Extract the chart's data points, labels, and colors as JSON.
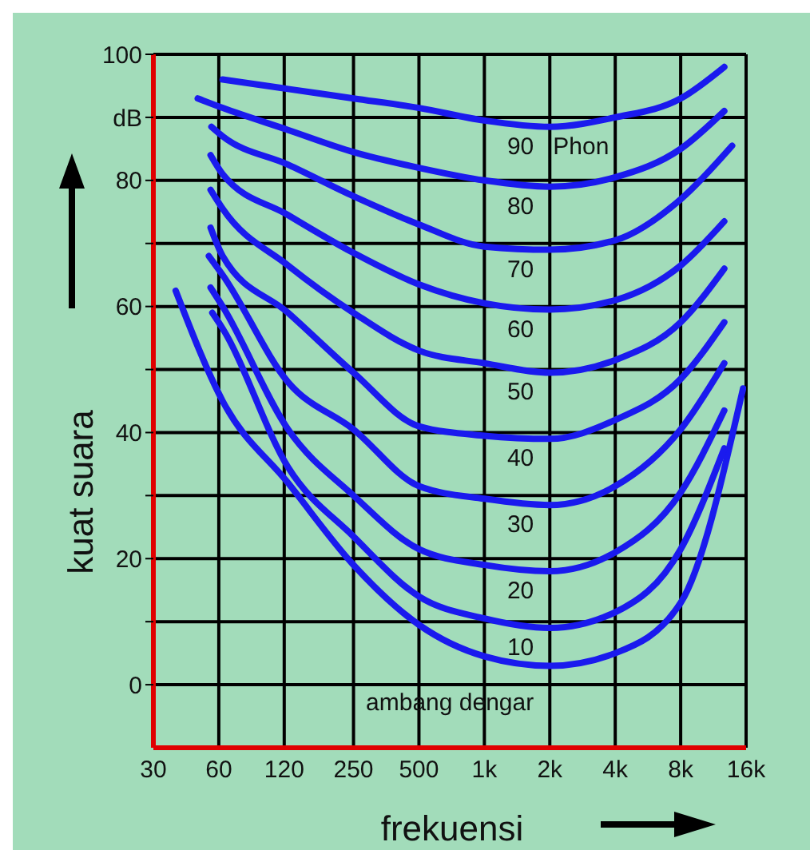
{
  "chart_data": {
    "type": "line",
    "xlabel": "frekuensi",
    "ylabel": "kuat suara",
    "log": "x",
    "grid": true,
    "xlim": [
      30,
      16000
    ],
    "ylim": [
      -10,
      100
    ],
    "xticks": [
      30,
      60,
      120,
      250,
      500,
      {
        "value": 1000,
        "label": "1k"
      },
      {
        "value": 2000,
        "label": "2k"
      },
      {
        "value": 4000,
        "label": "4k"
      },
      {
        "value": 8000,
        "label": "8k"
      },
      {
        "value": 16000,
        "label": "16k"
      }
    ],
    "yticks": [
      0,
      {
        "value": 10,
        "label": null
      },
      20,
      {
        "value": 30,
        "label": null
      },
      40,
      {
        "value": 50,
        "label": null
      },
      60,
      {
        "value": 70,
        "label": null
      },
      80,
      {
        "value": 90,
        "label": "dB"
      },
      100
    ],
    "annotations": [
      "Phon"
    ],
    "series": [
      {
        "name": "ambang dengar",
        "color": "#1a1aee",
        "x": [
          38,
          62.5,
          125,
          250,
          500,
          1000,
          2000,
          4000,
          8000,
          15500
        ],
        "values": [
          62.5,
          45,
          32,
          19,
          9.5,
          4.5,
          3,
          5,
          13,
          47
        ]
      },
      {
        "name": "10",
        "color": "#1a1aee",
        "x": [
          56,
          62.5,
          125,
          250,
          500,
          1000,
          2000,
          4000,
          8000,
          12700
        ],
        "values": [
          59,
          56.5,
          34.5,
          23.5,
          14,
          10.5,
          9,
          11.5,
          21.5,
          37.5
        ]
      },
      {
        "name": "20",
        "color": "#1a1aee",
        "x": [
          55,
          62.5,
          125,
          250,
          500,
          1000,
          2000,
          4000,
          8000,
          12700
        ],
        "values": [
          63,
          60,
          40.5,
          30,
          21.5,
          19,
          18,
          21,
          30.5,
          43.5
        ]
      },
      {
        "name": "30",
        "color": "#1a1aee",
        "x": [
          54,
          62.5,
          125,
          250,
          500,
          1000,
          2000,
          4000,
          8000,
          12700
        ],
        "values": [
          68,
          65,
          48,
          40.5,
          31.5,
          29.5,
          28.5,
          31.5,
          40.5,
          51
        ]
      },
      {
        "name": "40",
        "color": "#1a1aee",
        "x": [
          55,
          62.5,
          125,
          250,
          500,
          1000,
          2000,
          4000,
          8000,
          12700
        ],
        "values": [
          72.5,
          68,
          59,
          49.5,
          41,
          39.5,
          39,
          42,
          48.5,
          57.5
        ]
      },
      {
        "name": "50",
        "color": "#1a1aee",
        "x": [
          55,
          62.5,
          125,
          250,
          500,
          1000,
          2000,
          4000,
          8000,
          12700
        ],
        "values": [
          78.5,
          75.5,
          66.5,
          59,
          53,
          51,
          49.5,
          51.5,
          57.5,
          66
        ]
      },
      {
        "name": "60",
        "color": "#1a1aee",
        "x": [
          55,
          62.5,
          125,
          250,
          500,
          1000,
          2000,
          4000,
          8000,
          12700
        ],
        "values": [
          84,
          81,
          74.5,
          68.5,
          63.5,
          60.5,
          59.5,
          61,
          66.5,
          73.5
        ]
      },
      {
        "name": "70",
        "color": "#1a1aee",
        "x": [
          55.5,
          62.5,
          125,
          250,
          500,
          1000,
          2000,
          4000,
          8000,
          13800
        ],
        "values": [
          88.5,
          87,
          82.5,
          77.5,
          73,
          69.5,
          69,
          70.5,
          77,
          85.5
        ]
      },
      {
        "name": "80",
        "color": "#1a1aee",
        "x": [
          48,
          62.5,
          125,
          250,
          500,
          1000,
          2000,
          4000,
          8000,
          12700
        ],
        "values": [
          93,
          91.5,
          88,
          84.5,
          82,
          80,
          79,
          80.5,
          85,
          91
        ]
      },
      {
        "name": "90",
        "color": "#1a1aee",
        "x": [
          62.5,
          125,
          250,
          500,
          1000,
          2000,
          4000,
          8000,
          12700
        ],
        "values": [
          96,
          94.5,
          93,
          91.5,
          89.5,
          88.5,
          90,
          93,
          98
        ]
      }
    ]
  }
}
